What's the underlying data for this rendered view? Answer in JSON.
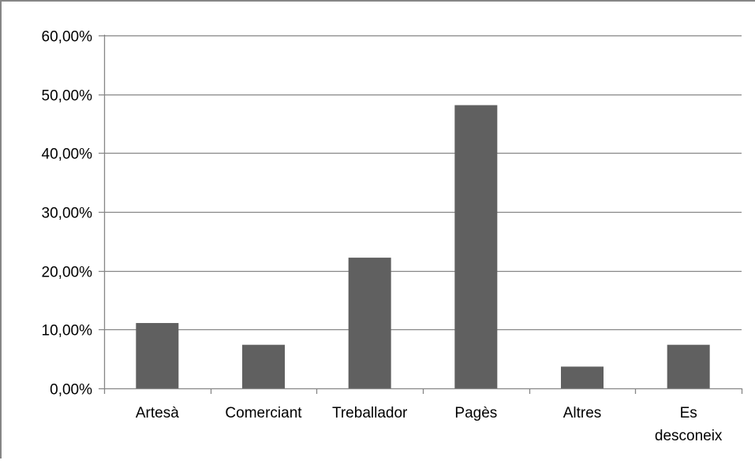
{
  "chart_data": {
    "type": "bar",
    "title": "",
    "xlabel": "",
    "ylabel": "",
    "categories": [
      "Artesà",
      "Comerciant",
      "Treballador",
      "Pagès",
      "Altres",
      "Es desconeix"
    ],
    "category_label_lines": [
      [
        "Artesà"
      ],
      [
        "Comerciant"
      ],
      [
        "Treballador"
      ],
      [
        "Pagès"
      ],
      [
        "Altres"
      ],
      [
        "Es",
        "desconeix"
      ]
    ],
    "values": [
      11.11,
      7.41,
      22.22,
      48.15,
      3.7,
      7.41
    ],
    "ylim": [
      0,
      60
    ],
    "yticks": [
      0,
      10,
      20,
      30,
      40,
      50,
      60
    ],
    "ytick_labels": [
      "0,00%",
      "10,00%",
      "20,00%",
      "30,00%",
      "40,00%",
      "50,00%",
      "60,00%"
    ],
    "grid": true,
    "legend": "none",
    "bar_color": "#606060",
    "gridline_color": "#868686",
    "axis_color": "#868686"
  }
}
